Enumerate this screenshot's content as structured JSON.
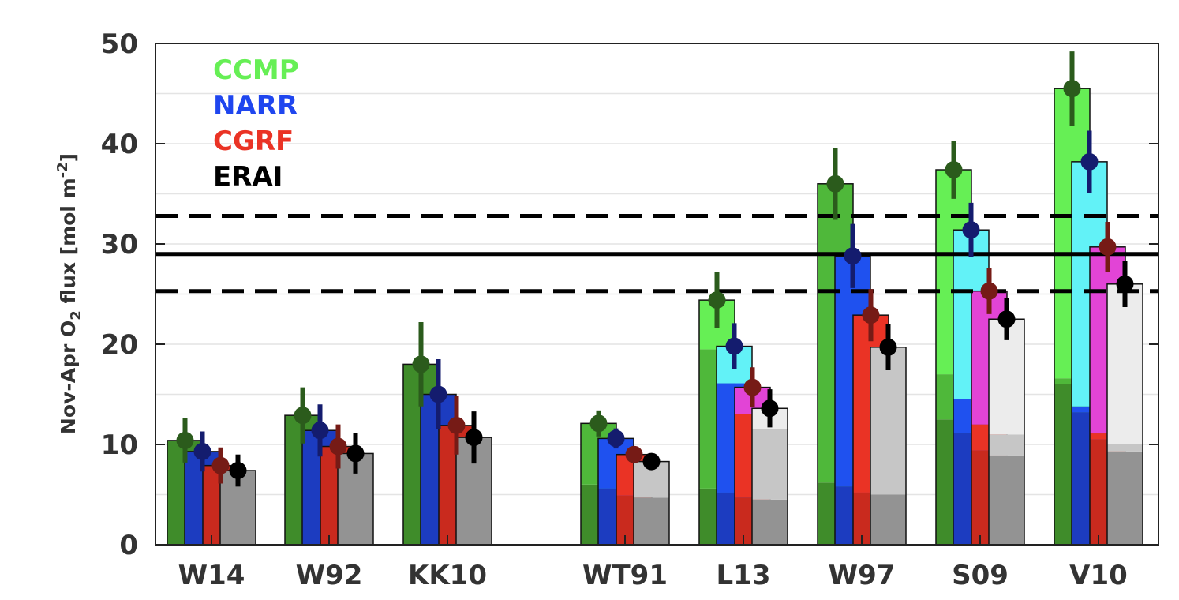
{
  "chart_data": {
    "type": "bar",
    "ylabel": "Nov-Apr O",
    "ylabel_sub": "2",
    "ylabel_rest": " flux  [mol m",
    "ylabel_sup": "-2",
    "ylabel_end": "]",
    "ylim": [
      0,
      50
    ],
    "yticks": [
      "0",
      "10",
      "20",
      "30",
      "40",
      "50"
    ],
    "grid": true,
    "legend_position": "top-left",
    "categories": [
      "W14",
      "W92",
      "KK10",
      "WT91",
      "L13",
      "W97",
      "S09",
      "V10"
    ],
    "series": [
      {
        "name": "CCMP",
        "colors": {
          "base": "#3f8c2a",
          "mid": "#4fb83a",
          "top": "#66ef55",
          "marker": "#2b5b1c"
        },
        "values": [
          10.4,
          12.9,
          18.0,
          12.1,
          24.4,
          36.0,
          37.4,
          45.5
        ],
        "errors": [
          2.2,
          2.8,
          4.2,
          1.3,
          2.8,
          3.6,
          2.9,
          3.7
        ],
        "segments": [
          [
            10.4,
            10.4
          ],
          [
            12.9,
            12.9
          ],
          [
            18.0,
            18.0
          ],
          [
            6.0,
            12.1
          ],
          [
            5.6,
            19.5
          ],
          [
            6.2,
            36.0
          ],
          [
            12.5,
            17.0
          ],
          [
            16.0,
            16.6
          ]
        ]
      },
      {
        "name": "NARR",
        "colors": {
          "base": "#1c3cc0",
          "mid": "#1f51ef",
          "top": "#62f2f7",
          "marker": "#141c6e"
        },
        "values": [
          9.3,
          11.4,
          15.0,
          10.6,
          19.8,
          28.8,
          31.4,
          38.2
        ],
        "errors": [
          2.0,
          2.6,
          3.5,
          1.0,
          2.3,
          3.2,
          2.7,
          3.1
        ],
        "segments": [
          [
            9.3,
            9.3
          ],
          [
            11.4,
            11.4
          ],
          [
            15.0,
            15.0
          ],
          [
            5.6,
            10.6
          ],
          [
            5.2,
            16.1
          ],
          [
            5.8,
            28.8
          ],
          [
            11.1,
            14.5
          ],
          [
            13.2,
            13.8
          ]
        ]
      },
      {
        "name": "CGRF",
        "colors": {
          "base": "#c92a1e",
          "mid": "#ea3325",
          "top": "#e244d6",
          "marker": "#761b16"
        },
        "values": [
          7.9,
          9.8,
          11.9,
          9.0,
          15.7,
          22.9,
          25.3,
          29.7
        ],
        "errors": [
          1.8,
          2.2,
          2.9,
          0.6,
          2.0,
          2.6,
          2.3,
          2.5
        ],
        "segments": [
          [
            7.9,
            7.9
          ],
          [
            9.8,
            9.8
          ],
          [
            11.9,
            11.9
          ],
          [
            4.9,
            9.0
          ],
          [
            4.7,
            13.0
          ],
          [
            5.2,
            22.9
          ],
          [
            9.4,
            12.0
          ],
          [
            10.5,
            11.1
          ]
        ]
      },
      {
        "name": "ERAI",
        "colors": {
          "base": "#939393",
          "mid": "#c6c6c6",
          "top": "#ececec",
          "marker": "#000000"
        },
        "values": [
          7.4,
          9.1,
          10.7,
          8.3,
          13.6,
          19.7,
          22.5,
          26.0
        ],
        "errors": [
          1.6,
          2.0,
          2.6,
          0.5,
          1.9,
          2.3,
          2.1,
          2.3
        ],
        "segments": [
          [
            7.4,
            7.4
          ],
          [
            9.1,
            9.1
          ],
          [
            10.7,
            10.7
          ],
          [
            4.7,
            8.3
          ],
          [
            4.5,
            11.5
          ],
          [
            5.0,
            19.7
          ],
          [
            8.9,
            11.0
          ],
          [
            9.3,
            10.0
          ]
        ]
      }
    ],
    "reference_lines": [
      {
        "value": 29.0,
        "style": "solid"
      },
      {
        "value": 32.8,
        "style": "dashed"
      },
      {
        "value": 25.3,
        "style": "dashed"
      }
    ]
  }
}
